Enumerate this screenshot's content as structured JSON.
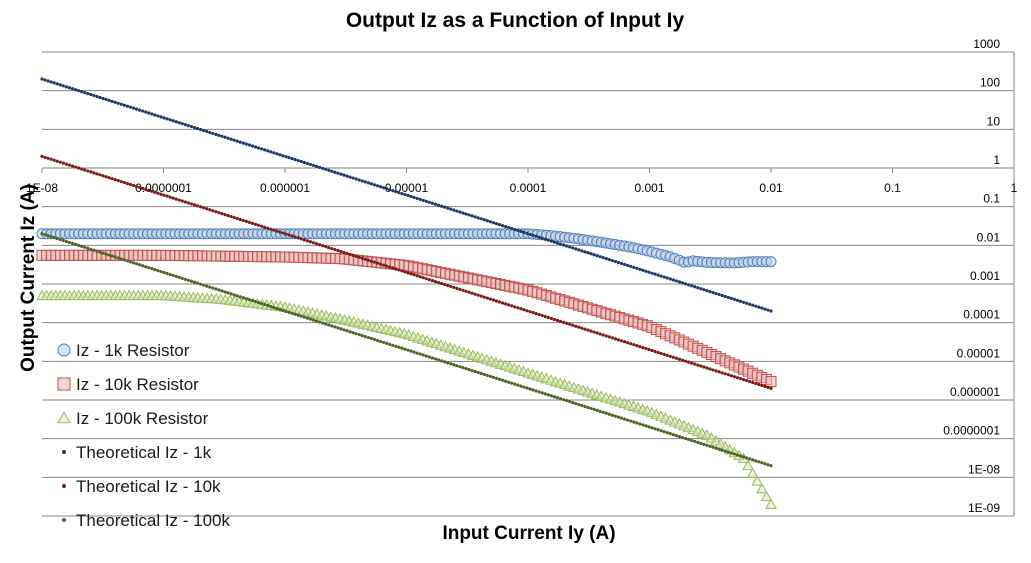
{
  "chart_data": {
    "type": "scatter",
    "title": "Output Iz as a Function of Input Iy",
    "xlabel": "Input Current Iy (A)",
    "ylabel": "Output Current Iz (A)",
    "x_scale": "log",
    "y_scale": "log",
    "xlim": [
      1e-08,
      1
    ],
    "ylim": [
      1e-09,
      1000
    ],
    "x_tick_labels": [
      "1E-08",
      "0.0000001",
      "0.000001",
      "0.00001",
      "0.0001",
      "0.001",
      "0.01",
      "0.1",
      "1"
    ],
    "y_tick_labels": [
      "1E-09",
      "1E-08",
      "0.0000001",
      "0.000001",
      "0.00001",
      "0.0001",
      "0.001",
      "0.01",
      "0.1",
      "1",
      "10",
      "100",
      "1000"
    ],
    "grid": "horizontal major gridlines",
    "legend_position": "left, inside plot",
    "series": [
      {
        "name": "Iz - 1k Resistor",
        "marker": "circle",
        "color": "#4f81bd",
        "fill": "#b9cde5",
        "x": [
          1e-08,
          1e-07,
          1e-06,
          1e-05,
          0.0001,
          0.00015,
          0.00025,
          0.0004,
          0.0007,
          0.001,
          0.0015,
          0.002,
          0.0022,
          0.003,
          0.005,
          0.007,
          0.01
        ],
        "y": [
          0.02,
          0.02,
          0.02,
          0.02,
          0.02,
          0.018,
          0.015,
          0.012,
          0.009,
          0.007,
          0.005,
          0.0035,
          0.004,
          0.0036,
          0.0035,
          0.0038,
          0.0038
        ]
      },
      {
        "name": "Iz - 10k Resistor",
        "marker": "square",
        "color": "#c0504d",
        "fill": "#e6b9b8",
        "x": [
          1e-08,
          1e-07,
          1e-06,
          3e-06,
          1e-05,
          3e-05,
          0.0001,
          0.001,
          0.01
        ],
        "y": [
          0.0055,
          0.0055,
          0.005,
          0.0045,
          0.003,
          0.0015,
          0.0007,
          8e-05,
          3e-06
        ]
      },
      {
        "name": "Iz - 100k Resistor",
        "marker": "triangle",
        "color": "#9bbb59",
        "fill": "#d7e4bd",
        "x": [
          1e-08,
          1e-07,
          3e-07,
          1e-06,
          3e-06,
          1e-05,
          0.0001,
          0.001,
          0.003,
          0.006,
          0.01
        ],
        "y": [
          0.0005,
          0.0005,
          0.0004,
          0.00025,
          0.00012,
          5e-05,
          5e-06,
          5e-07,
          1.2e-07,
          3e-08,
          2e-09
        ]
      },
      {
        "name": "Theoretical Iz - 1k",
        "marker": "dot",
        "color": "#1f3864",
        "x": [
          1e-08,
          0.01
        ],
        "y": [
          200,
          0.0002
        ]
      },
      {
        "name": "Theoretical Iz - 10k",
        "marker": "dot",
        "color": "#7b1c1c",
        "x": [
          1e-08,
          0.01
        ],
        "y": [
          2,
          2e-06
        ]
      },
      {
        "name": "Theoretical Iz - 100k",
        "marker": "dot",
        "color": "#4f6228",
        "x": [
          1e-08,
          0.01
        ],
        "y": [
          0.02,
          2e-08
        ]
      }
    ]
  }
}
